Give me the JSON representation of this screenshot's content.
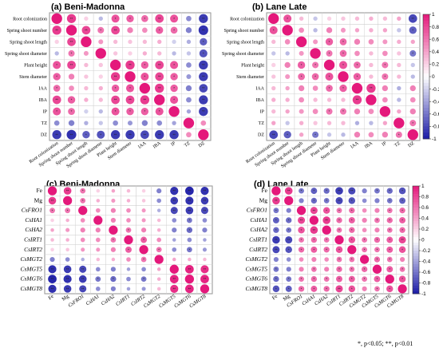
{
  "chart_data": [
    {
      "id": "a",
      "type": "heatmap",
      "title": "(a) Beni-Madonna",
      "variables": [
        "Root colonization",
        "Spring shoot number",
        "Spring shoot length",
        "Spring shoot diameter",
        "Plant height",
        "Stem diameter",
        "IAA",
        "IBA",
        "IP",
        "TZ",
        "DZ"
      ],
      "matrix": [
        [
          1,
          0.85,
          0.2,
          -0.3,
          0.75,
          0.7,
          0.65,
          0.8,
          0.75,
          -0.5,
          -0.85
        ],
        [
          0.85,
          1,
          0.8,
          0.6,
          0.8,
          0.55,
          0.5,
          0.7,
          0.65,
          -0.55,
          -0.9
        ],
        [
          0.2,
          0.8,
          1,
          0.45,
          0.3,
          0.25,
          0.3,
          0.35,
          -0.2,
          -0.35,
          -0.7
        ],
        [
          -0.3,
          0.6,
          0.45,
          1,
          0.25,
          0.2,
          0.35,
          0.3,
          -0.3,
          -0.25,
          -0.75
        ],
        [
          0.75,
          0.8,
          0.3,
          0.25,
          1,
          0.85,
          0.7,
          0.8,
          0.75,
          -0.5,
          -0.85
        ],
        [
          0.7,
          0.55,
          0.25,
          0.2,
          0.85,
          1,
          0.75,
          0.8,
          0.7,
          -0.45,
          -0.85
        ],
        [
          0.65,
          0.5,
          0.3,
          0.35,
          0.7,
          0.75,
          1,
          0.85,
          0.7,
          -0.55,
          -0.8
        ],
        [
          0.8,
          0.7,
          0.35,
          0.3,
          0.8,
          0.8,
          0.85,
          1,
          0.75,
          -0.5,
          -0.85
        ],
        [
          0.75,
          0.65,
          -0.2,
          -0.3,
          0.75,
          0.7,
          0.7,
          0.75,
          1,
          -0.4,
          -0.85
        ],
        [
          -0.5,
          -0.55,
          -0.35,
          -0.25,
          -0.5,
          -0.45,
          -0.55,
          -0.5,
          -0.4,
          1,
          0.5
        ],
        [
          -0.85,
          -0.9,
          -0.7,
          -0.75,
          -0.85,
          -0.85,
          -0.8,
          -0.85,
          -0.85,
          0.5,
          1
        ]
      ],
      "colorbar": false
    },
    {
      "id": "b",
      "type": "heatmap",
      "title": "(b) Lane Late",
      "variables": [
        "Root colonization",
        "Spring shoot number",
        "Spring shoot length",
        "Spring shoot diameter",
        "Plant height",
        "Stem diameter",
        "IAA",
        "IBA",
        "IP",
        "TZ",
        "DZ"
      ],
      "matrix": [
        [
          1,
          0.75,
          0.3,
          -0.25,
          0.2,
          0.25,
          0.3,
          0.35,
          0.3,
          0.4,
          -0.8
        ],
        [
          0.75,
          1,
          0.5,
          -0.3,
          0.55,
          0.45,
          0.4,
          0.35,
          0.4,
          -0.25,
          -0.7
        ],
        [
          0.3,
          0.5,
          1,
          0.45,
          0.7,
          0.65,
          0.55,
          0.5,
          0.45,
          0.35,
          0.4
        ],
        [
          -0.25,
          -0.3,
          0.45,
          1,
          0.6,
          0.65,
          0.5,
          0.3,
          0.5,
          0.25,
          -0.6
        ],
        [
          0.2,
          0.55,
          0.7,
          0.6,
          1,
          0.75,
          0.65,
          0.3,
          0.6,
          0.3,
          -0.25
        ],
        [
          0.25,
          0.45,
          0.65,
          0.65,
          0.75,
          1,
          0.7,
          0.3,
          0.6,
          0.3,
          -0.3
        ],
        [
          0.3,
          0.4,
          0.55,
          0.5,
          0.65,
          0.7,
          1,
          0.85,
          0.55,
          -0.35,
          0.55
        ],
        [
          0.35,
          0.35,
          0.5,
          0.3,
          0.3,
          0.3,
          0.85,
          1,
          0.5,
          -0.3,
          0.5
        ],
        [
          0.3,
          0.4,
          0.45,
          0.5,
          0.6,
          0.6,
          0.55,
          0.5,
          1,
          0.4,
          0.55
        ],
        [
          0.4,
          -0.25,
          0.35,
          0.25,
          0.3,
          0.3,
          -0.35,
          -0.3,
          0.4,
          1,
          0.6
        ],
        [
          -0.8,
          -0.7,
          0.4,
          -0.6,
          -0.25,
          -0.3,
          0.55,
          0.5,
          0.55,
          0.6,
          1
        ]
      ],
      "colorbar": {
        "ticks": [
          "1",
          "0.8",
          "0.6",
          "0.4",
          "0.2",
          "0",
          "-0.2",
          "-0.4",
          "-0.6",
          "-0.8",
          "-1"
        ]
      }
    },
    {
      "id": "c",
      "type": "heatmap",
      "title": "(c) Beni-Madonna",
      "variables": [
        "Fe",
        "Mg",
        "CsFRO1",
        "CsHA1",
        "CsHA2",
        "CsIRT1",
        "CsIRT2",
        "CsMGT2",
        "CsMGT5",
        "CsMGT6",
        "CsMGT8"
      ],
      "matrix": [
        [
          1,
          0.85,
          0.6,
          0.2,
          0.4,
          0.3,
          0.2,
          -0.55,
          -0.9,
          -0.95,
          -0.9
        ],
        [
          0.85,
          1,
          0.6,
          0.35,
          0.45,
          0.35,
          0.25,
          -0.5,
          -0.85,
          -0.9,
          -0.85
        ],
        [
          0.6,
          0.6,
          1,
          0.5,
          0.55,
          0.5,
          0.45,
          -0.35,
          -0.8,
          -0.85,
          -0.8
        ],
        [
          0.2,
          0.35,
          0.5,
          1,
          0.55,
          0.5,
          0.45,
          0.3,
          -0.5,
          -0.6,
          -0.5
        ],
        [
          0.4,
          0.45,
          0.55,
          0.55,
          1,
          0.6,
          0.55,
          0.35,
          -0.55,
          -0.65,
          -0.55
        ],
        [
          0.3,
          0.35,
          0.5,
          0.5,
          0.6,
          1,
          0.7,
          0.5,
          -0.4,
          -0.5,
          -0.4
        ],
        [
          0.2,
          0.25,
          0.45,
          0.45,
          0.55,
          0.7,
          1,
          0.6,
          -0.5,
          -0.6,
          -0.45
        ],
        [
          -0.55,
          -0.5,
          -0.35,
          0.3,
          0.35,
          0.5,
          0.6,
          1,
          0.4,
          0.35,
          0.3
        ],
        [
          -0.9,
          -0.85,
          -0.8,
          -0.5,
          -0.55,
          -0.4,
          -0.5,
          0.4,
          1,
          0.95,
          0.9
        ],
        [
          -0.95,
          -0.9,
          -0.85,
          -0.6,
          -0.65,
          -0.5,
          -0.6,
          0.35,
          0.95,
          1,
          0.95
        ],
        [
          -0.9,
          -0.85,
          -0.8,
          -0.5,
          -0.55,
          -0.4,
          -0.45,
          0.3,
          0.9,
          0.95,
          1
        ]
      ],
      "colorbar": false
    },
    {
      "id": "d",
      "type": "heatmap",
      "title": "(d) Lane Late",
      "variables": [
        "Fe",
        "Mg",
        "CsFRO1",
        "CsHA1",
        "CsHA2",
        "CsIRT1",
        "CsIRT2",
        "CsMGT2",
        "CsMGT5",
        "CsMGT6",
        "CsMGT8"
      ],
      "matrix": [
        [
          1,
          0.85,
          -0.6,
          -0.7,
          -0.65,
          -0.85,
          -0.8,
          -0.55,
          -0.6,
          -0.65,
          -0.75
        ],
        [
          0.85,
          1,
          -0.55,
          -0.65,
          -0.6,
          -0.8,
          -0.75,
          -0.5,
          -0.55,
          -0.6,
          -0.7
        ],
        [
          -0.6,
          -0.55,
          1,
          0.8,
          0.75,
          0.6,
          0.65,
          0.5,
          0.55,
          0.6,
          0.65
        ],
        [
          -0.7,
          -0.65,
          0.8,
          1,
          0.85,
          0.65,
          0.7,
          0.55,
          0.6,
          0.65,
          0.7
        ],
        [
          -0.65,
          -0.6,
          0.75,
          0.85,
          1,
          0.6,
          0.65,
          0.5,
          0.55,
          0.6,
          0.65
        ],
        [
          -0.85,
          -0.8,
          0.6,
          0.65,
          0.6,
          1,
          0.75,
          0.6,
          0.65,
          0.7,
          0.8
        ],
        [
          -0.8,
          -0.75,
          0.65,
          0.7,
          0.65,
          0.75,
          1,
          0.6,
          0.6,
          0.7,
          0.75
        ],
        [
          -0.55,
          -0.5,
          0.5,
          0.55,
          0.5,
          0.6,
          0.6,
          1,
          0.65,
          0.6,
          0.55
        ],
        [
          -0.6,
          -0.55,
          0.55,
          0.6,
          0.55,
          0.65,
          0.6,
          0.65,
          1,
          0.7,
          0.6
        ],
        [
          -0.65,
          -0.6,
          0.6,
          0.65,
          0.6,
          0.7,
          0.7,
          0.6,
          0.7,
          1,
          0.75
        ],
        [
          -0.75,
          -0.7,
          0.65,
          0.7,
          0.65,
          0.8,
          0.75,
          0.55,
          0.6,
          0.75,
          1
        ]
      ],
      "colorbar": {
        "ticks": [
          "1",
          "0.8",
          "0.6",
          "0.4",
          "0.2",
          "0",
          "-0.2",
          "-0.4",
          "-0.6",
          "-0.8",
          "-1"
        ]
      }
    }
  ],
  "significance_symbols": {
    "p05": "*",
    "p01": "**"
  },
  "footnote": "*, p<0.05; **, p<0.01",
  "colors": {
    "positive": "#e4187b",
    "neutral": "#ffffff",
    "negative": "#1a1aa6",
    "grid": "#d0d0d0"
  }
}
